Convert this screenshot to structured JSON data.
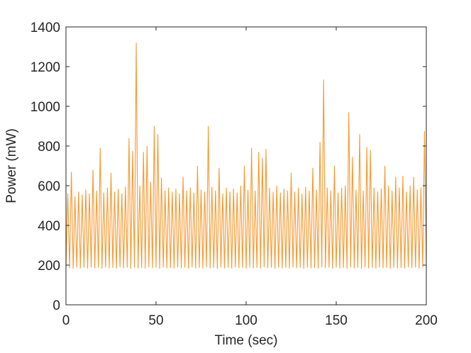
{
  "chart_data": {
    "type": "line",
    "x_label": "Time (sec)",
    "y_label": "Power (mW)",
    "xlim": [
      0,
      200
    ],
    "xticks": [
      0,
      50,
      100,
      150,
      200
    ],
    "ylim": [
      0,
      1400
    ],
    "yticks": [
      0,
      200,
      400,
      600,
      800,
      1000,
      1200,
      1400
    ],
    "grid": false,
    "color": "#f7982f",
    "x": [
      0,
      1,
      2,
      3,
      4,
      5,
      6,
      7,
      8,
      9,
      10,
      11,
      12,
      13,
      14,
      15,
      16,
      17,
      18,
      19,
      20,
      21,
      22,
      23,
      24,
      25,
      26,
      27,
      28,
      29,
      30,
      31,
      32,
      33,
      34,
      35,
      36,
      37,
      38,
      39,
      40,
      41,
      42,
      43,
      44,
      45,
      46,
      47,
      48,
      49,
      50,
      51,
      52,
      53,
      54,
      55,
      56,
      57,
      58,
      59,
      60,
      61,
      62,
      63,
      64,
      65,
      66,
      67,
      68,
      69,
      70,
      71,
      72,
      73,
      74,
      75,
      76,
      77,
      78,
      79,
      80,
      81,
      82,
      83,
      84,
      85,
      86,
      87,
      88,
      89,
      90,
      91,
      92,
      93,
      94,
      95,
      96,
      97,
      98,
      99,
      100,
      101,
      102,
      103,
      104,
      105,
      106,
      107,
      108,
      109,
      110,
      111,
      112,
      113,
      114,
      115,
      116,
      117,
      118,
      119,
      120,
      121,
      122,
      123,
      124,
      125,
      126,
      127,
      128,
      129,
      130,
      131,
      132,
      133,
      134,
      135,
      136,
      137,
      138,
      139,
      140,
      141,
      142,
      143,
      144,
      145,
      146,
      147,
      148,
      149,
      150,
      151,
      152,
      153,
      154,
      155,
      156,
      157,
      158,
      159,
      160,
      161,
      162,
      163,
      164,
      165,
      166,
      167,
      168,
      169,
      170,
      171,
      172,
      173,
      174,
      175,
      176,
      177,
      178,
      179,
      180,
      181,
      182,
      183,
      184,
      185,
      186,
      187,
      188,
      189,
      190,
      191,
      192,
      193,
      194,
      195,
      196,
      197,
      198,
      199,
      200
    ],
    "values": [
      190,
      560,
      185,
      670,
      182,
      545,
      188,
      570,
      184,
      555,
      186,
      580,
      183,
      560,
      189,
      680,
      185,
      575,
      187,
      790,
      182,
      565,
      188,
      590,
      184,
      665,
      186,
      570,
      183,
      585,
      189,
      560,
      185,
      595,
      187,
      840,
      182,
      775,
      188,
      1320,
      184,
      600,
      186,
      770,
      183,
      800,
      189,
      620,
      185,
      900,
      187,
      860,
      182,
      640,
      188,
      575,
      184,
      590,
      186,
      570,
      183,
      585,
      189,
      560,
      185,
      645,
      187,
      575,
      182,
      590,
      188,
      565,
      184,
      700,
      186,
      580,
      183,
      570,
      189,
      900,
      185,
      595,
      187,
      575,
      182,
      690,
      188,
      560,
      184,
      590,
      186,
      570,
      183,
      585,
      189,
      565,
      185,
      600,
      187,
      700,
      182,
      580,
      188,
      790,
      184,
      575,
      186,
      770,
      183,
      740,
      189,
      785,
      185,
      590,
      187,
      570,
      182,
      600,
      188,
      565,
      184,
      585,
      186,
      575,
      183,
      665,
      189,
      570,
      185,
      590,
      187,
      560,
      182,
      595,
      188,
      575,
      184,
      690,
      186,
      580,
      183,
      820,
      189,
      1135,
      185,
      590,
      187,
      575,
      182,
      700,
      188,
      565,
      184,
      590,
      186,
      600,
      183,
      970,
      189,
      745,
      185,
      580,
      187,
      860,
      182,
      575,
      188,
      795,
      184,
      780,
      186,
      590,
      183,
      570,
      189,
      585,
      185,
      700,
      187,
      600,
      182,
      575,
      188,
      645,
      184,
      590,
      186,
      650,
      183,
      570,
      189,
      600,
      185,
      645,
      187,
      580,
      182,
      590,
      188,
      875,
      185
    ]
  }
}
